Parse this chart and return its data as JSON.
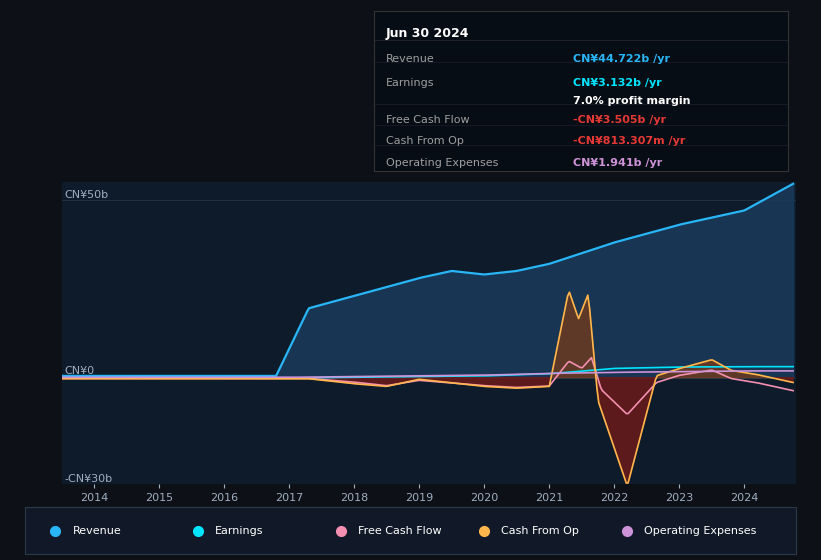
{
  "background_color": "#0d1117",
  "chart_bg": "#0d1b2a",
  "ylim": [
    -30,
    55
  ],
  "xlim": [
    2013.5,
    2024.8
  ],
  "xticks": [
    2014,
    2015,
    2016,
    2017,
    2018,
    2019,
    2020,
    2021,
    2022,
    2023,
    2024
  ],
  "ylabel_top": "CN¥50b",
  "ylabel_zero": "CN¥0",
  "ylabel_bottom": "-CN¥30b",
  "info_box": {
    "date": "Jun 30 2024",
    "revenue_label": "Revenue",
    "revenue_value": "CN¥44.722b /yr",
    "earnings_label": "Earnings",
    "earnings_value": "CN¥3.132b /yr",
    "profit_margin": "7.0% profit margin",
    "fcf_label": "Free Cash Flow",
    "fcf_value": "-CN¥3.505b /yr",
    "cfo_label": "Cash From Op",
    "cfo_value": "-CN¥813.307m /yr",
    "opex_label": "Operating Expenses",
    "opex_value": "CN¥1.941b /yr"
  },
  "colors": {
    "revenue": "#29b6f6",
    "earnings": "#00e5ff",
    "free_cash_flow": "#f48fb1",
    "cash_from_op": "#ffb74d",
    "operating_expenses": "#ce93d8",
    "revenue_fill": "#1a3a5c",
    "cash_fill_pos": "#6b3a1f",
    "cash_fill_neg": "#6b1a1a",
    "neg_value": "#e53935",
    "label_gray": "#9e9e9e",
    "tick_color": "#a0aec0",
    "grid_color": "#2d3748"
  },
  "legend": [
    {
      "label": "Revenue",
      "color": "#29b6f6"
    },
    {
      "label": "Earnings",
      "color": "#00e5ff"
    },
    {
      "label": "Free Cash Flow",
      "color": "#f48fb1"
    },
    {
      "label": "Cash From Op",
      "color": "#ffb74d"
    },
    {
      "label": "Operating Expenses",
      "color": "#ce93d8"
    }
  ]
}
